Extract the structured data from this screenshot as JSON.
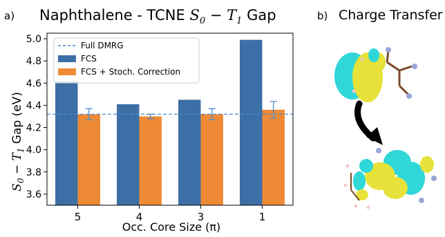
{
  "panel_a": {
    "label": "a)",
    "title_prefix": "Naphthalene - TCNE",
    "title_math": [
      "S",
      "0",
      " − ",
      "T",
      "1"
    ],
    "title_suffix": "Gap"
  },
  "panel_b": {
    "label": "b)",
    "title": "Charge Transfer"
  },
  "colors": {
    "fcs": "#3d6fa7",
    "corrected": "#ee8a35",
    "dmrg": "#4a8ad0",
    "errorbar": "#4a8ad0",
    "orbital_cyan": "#2fd7d9",
    "orbital_yellow": "#e6e23a",
    "carbon": "#7a4a2a",
    "hydrogen": "#f2c9c9",
    "nitrogen": "#9aa6d8"
  },
  "chart_data": {
    "type": "bar",
    "xlabel": "Occ. Core Size (π)",
    "ylabel_parts": [
      "S",
      "0",
      " − ",
      "T",
      "1",
      " Gap (eV)"
    ],
    "categories": [
      "5",
      "4",
      "3",
      "1"
    ],
    "ylim": [
      3.5,
      5.05
    ],
    "yticks": [
      3.6,
      3.8,
      4.0,
      4.2,
      4.4,
      4.6,
      4.8,
      5.0
    ],
    "ytick_labels": [
      "3.6",
      "3.8",
      "4.0",
      "4.2",
      "4.4",
      "4.6",
      "4.8",
      "5.0"
    ],
    "series": [
      {
        "name": "FCS",
        "values": [
          4.62,
          4.41,
          4.45,
          4.99
        ]
      },
      {
        "name": "FCS + Stoch. Correction",
        "values": [
          4.32,
          4.3,
          4.32,
          4.36
        ],
        "errors": [
          0.05,
          0.02,
          0.05,
          0.075
        ]
      }
    ],
    "reference": {
      "name": "Full DMRG",
      "value": 4.32,
      "style": "dashed"
    },
    "legend": [
      "Full DMRG",
      "FCS",
      "FCS + Stoch. Correction"
    ],
    "legend_position": "top-left",
    "grid": false
  }
}
